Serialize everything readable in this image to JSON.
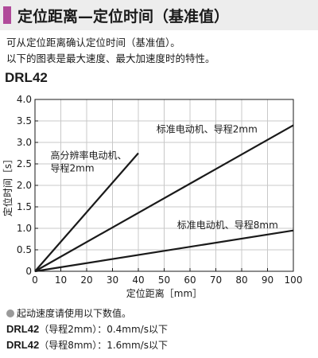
{
  "header": {
    "title": "定位距离—定位时间（基准值）",
    "accent_color": "#b04a9a"
  },
  "intro": {
    "line1": "可从定位距离确认定位时间（基准值）。",
    "line2": "以下的图表是最大速度、最大加速度时的特性。"
  },
  "model_label": "DRL42",
  "chart_data": {
    "type": "line",
    "title": "",
    "xlabel": "定位距离［mm］",
    "ylabel": "定位时间［s］",
    "xlim": [
      0,
      100
    ],
    "ylim": [
      0,
      4.0
    ],
    "xticks": [
      "0",
      "10",
      "20",
      "30",
      "40",
      "50",
      "60",
      "70",
      "80",
      "90",
      "100"
    ],
    "yticks": [
      "0",
      "0.5",
      "1.0",
      "1.5",
      "2.0",
      "2.5",
      "3.0",
      "3.5",
      "4.0"
    ],
    "grid": true,
    "legend": "none",
    "series": [
      {
        "name": "高分辨率电动机、导程2mm",
        "x": [
          0,
          40
        ],
        "y": [
          0,
          2.75
        ],
        "color": "#1a1a1a"
      },
      {
        "name": "标准电动机、导程2mm",
        "x": [
          0,
          100
        ],
        "y": [
          0,
          3.4
        ],
        "color": "#1a1a1a"
      },
      {
        "name": "标准电动机、导程8mm",
        "x": [
          0,
          100
        ],
        "y": [
          0,
          0.95
        ],
        "color": "#1a1a1a"
      }
    ],
    "annotations": [
      {
        "line1": "高分辨率电动机、",
        "line2": "导程2mm",
        "x": 6,
        "y": 2.62
      },
      {
        "line1": "标准电动机、导程2mm",
        "line2": "",
        "x": 47,
        "y": 3.23
      },
      {
        "line1": "标准电动机、导程8mm",
        "line2": "",
        "x": 55,
        "y": 1.0
      }
    ]
  },
  "notes": {
    "starting_speed_note": "起动速度请使用以下数值。",
    "spec1_model": "DRL42",
    "spec1_text": "（导程2mm）：0.4mm/s以下",
    "spec2_model": "DRL42",
    "spec2_text": "（导程8mm）：1.6mm/s以下"
  }
}
